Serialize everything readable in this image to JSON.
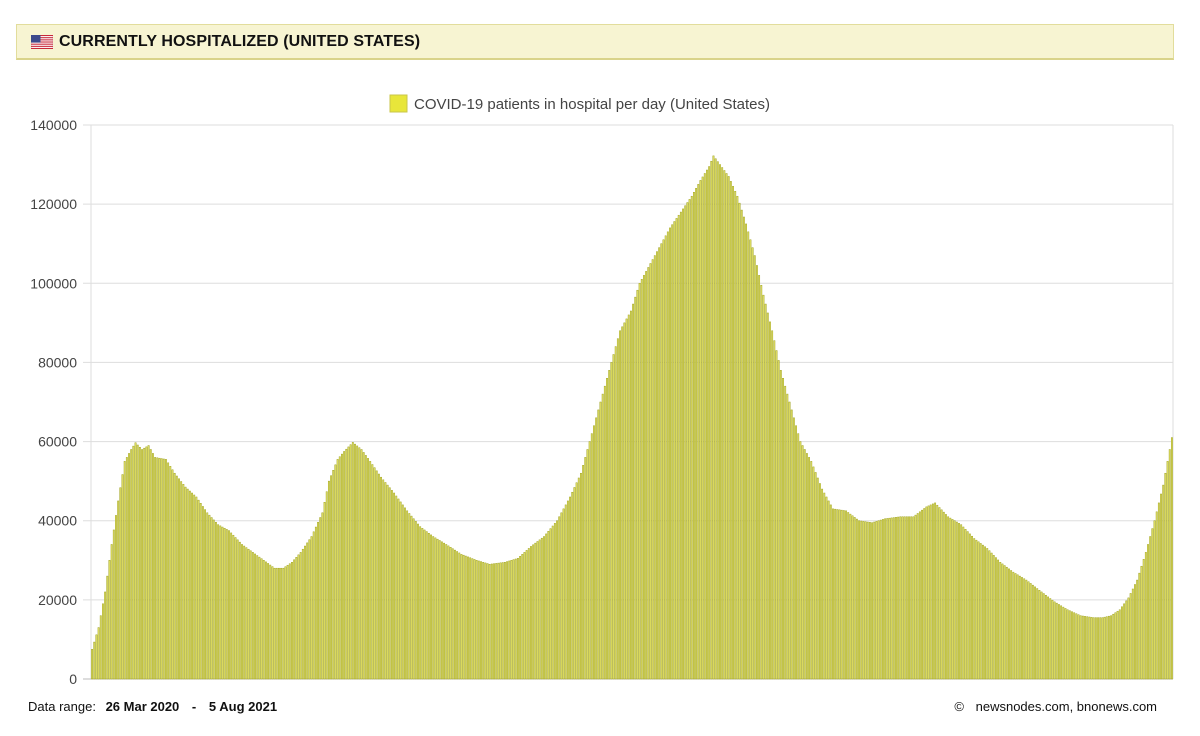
{
  "header": {
    "title": "CURRENTLY HOSPITALIZED (UNITED STATES)",
    "flag_icon": "us-flag-icon"
  },
  "footer": {
    "range_label": "Data range:",
    "range_start": "26 Mar 2020",
    "range_sep": "-",
    "range_end": "5 Aug 2021",
    "copyright_symbol": "©",
    "credit": "newsnodes.com, bnonews.com"
  },
  "colors": {
    "bar_fill": "#e4e36a",
    "bar_stroke": "#9fa21c",
    "legend_fill": "#e8e63a",
    "grid": "#dddddd",
    "header_bg": "#f7f4d2"
  },
  "chart_data": {
    "type": "bar",
    "legend": {
      "label": "COVID-19 patients in hospital per day (United States)",
      "position": "top-center"
    },
    "ylim": [
      0,
      140000
    ],
    "yticks": [
      0,
      20000,
      40000,
      60000,
      80000,
      100000,
      120000,
      140000
    ],
    "grid": true,
    "x_start": "2020-03-26",
    "x_end": "2021-08-05",
    "series": [
      {
        "name": "COVID-19 patients in hospital per day (United States)",
        "anchors": [
          [
            "2020-03-26",
            7500
          ],
          [
            "2020-03-29",
            13000
          ],
          [
            "2020-04-01",
            22000
          ],
          [
            "2020-04-04",
            34000
          ],
          [
            "2020-04-07",
            45000
          ],
          [
            "2020-04-10",
            55000
          ],
          [
            "2020-04-13",
            58000
          ],
          [
            "2020-04-15",
            59700
          ],
          [
            "2020-04-18",
            58000
          ],
          [
            "2020-04-21",
            59000
          ],
          [
            "2020-04-24",
            56000
          ],
          [
            "2020-04-29",
            55500
          ],
          [
            "2020-05-03",
            52000
          ],
          [
            "2020-05-08",
            48500
          ],
          [
            "2020-05-13",
            46000
          ],
          [
            "2020-05-18",
            42000
          ],
          [
            "2020-05-23",
            39000
          ],
          [
            "2020-05-28",
            37500
          ],
          [
            "2020-06-03",
            34000
          ],
          [
            "2020-06-08",
            32000
          ],
          [
            "2020-06-13",
            30000
          ],
          [
            "2020-06-18",
            28000
          ],
          [
            "2020-06-22",
            28000
          ],
          [
            "2020-06-26",
            29500
          ],
          [
            "2020-06-30",
            32000
          ],
          [
            "2020-07-05",
            36000
          ],
          [
            "2020-07-10",
            42000
          ],
          [
            "2020-07-13",
            50000
          ],
          [
            "2020-07-17",
            55500
          ],
          [
            "2020-07-20",
            57500
          ],
          [
            "2020-07-24",
            59800
          ],
          [
            "2020-07-28",
            58000
          ],
          [
            "2020-08-01",
            55000
          ],
          [
            "2020-08-06",
            51000
          ],
          [
            "2020-08-12",
            47000
          ],
          [
            "2020-08-18",
            42500
          ],
          [
            "2020-08-24",
            38500
          ],
          [
            "2020-08-30",
            36000
          ],
          [
            "2020-09-05",
            34000
          ],
          [
            "2020-09-12",
            31500
          ],
          [
            "2020-09-19",
            30000
          ],
          [
            "2020-09-25",
            29000
          ],
          [
            "2020-10-02",
            29500
          ],
          [
            "2020-10-08",
            30500
          ],
          [
            "2020-10-14",
            33500
          ],
          [
            "2020-10-20",
            36000
          ],
          [
            "2020-10-26",
            40000
          ],
          [
            "2020-11-01",
            46000
          ],
          [
            "2020-11-06",
            52000
          ],
          [
            "2020-11-11",
            62000
          ],
          [
            "2020-11-15",
            70000
          ],
          [
            "2020-11-19",
            78000
          ],
          [
            "2020-11-24",
            88000
          ],
          [
            "2020-11-29",
            93000
          ],
          [
            "2020-12-03",
            100000
          ],
          [
            "2020-12-07",
            104000
          ],
          [
            "2020-12-12",
            109000
          ],
          [
            "2020-12-17",
            114000
          ],
          [
            "2020-12-22",
            118000
          ],
          [
            "2020-12-27",
            122000
          ],
          [
            "2020-12-31",
            126000
          ],
          [
            "2021-01-04",
            129500
          ],
          [
            "2021-01-06",
            132200
          ],
          [
            "2021-01-09",
            130000
          ],
          [
            "2021-01-13",
            127000
          ],
          [
            "2021-01-17",
            122000
          ],
          [
            "2021-01-21",
            115000
          ],
          [
            "2021-01-25",
            107000
          ],
          [
            "2021-01-29",
            97000
          ],
          [
            "2021-02-02",
            88000
          ],
          [
            "2021-02-06",
            78000
          ],
          [
            "2021-02-11",
            68000
          ],
          [
            "2021-02-15",
            60000
          ],
          [
            "2021-02-20",
            55000
          ],
          [
            "2021-02-25",
            48000
          ],
          [
            "2021-03-02",
            43000
          ],
          [
            "2021-03-08",
            42500
          ],
          [
            "2021-03-14",
            40000
          ],
          [
            "2021-03-20",
            39500
          ],
          [
            "2021-03-26",
            40500
          ],
          [
            "2021-04-02",
            41000
          ],
          [
            "2021-04-08",
            41000
          ],
          [
            "2021-04-14",
            43500
          ],
          [
            "2021-04-18",
            44500
          ],
          [
            "2021-04-24",
            41000
          ],
          [
            "2021-04-30",
            39000
          ],
          [
            "2021-05-06",
            35500
          ],
          [
            "2021-05-12",
            33000
          ],
          [
            "2021-05-18",
            29500
          ],
          [
            "2021-05-24",
            27000
          ],
          [
            "2021-05-30",
            25000
          ],
          [
            "2021-06-06",
            22000
          ],
          [
            "2021-06-12",
            19500
          ],
          [
            "2021-06-18",
            17500
          ],
          [
            "2021-06-24",
            16000
          ],
          [
            "2021-06-30",
            15500
          ],
          [
            "2021-07-04",
            15500
          ],
          [
            "2021-07-08",
            16000
          ],
          [
            "2021-07-12",
            17500
          ],
          [
            "2021-07-16",
            20500
          ],
          [
            "2021-07-20",
            25000
          ],
          [
            "2021-07-24",
            32000
          ],
          [
            "2021-07-28",
            40000
          ],
          [
            "2021-08-01",
            49000
          ],
          [
            "2021-08-05",
            61000
          ]
        ]
      }
    ]
  }
}
